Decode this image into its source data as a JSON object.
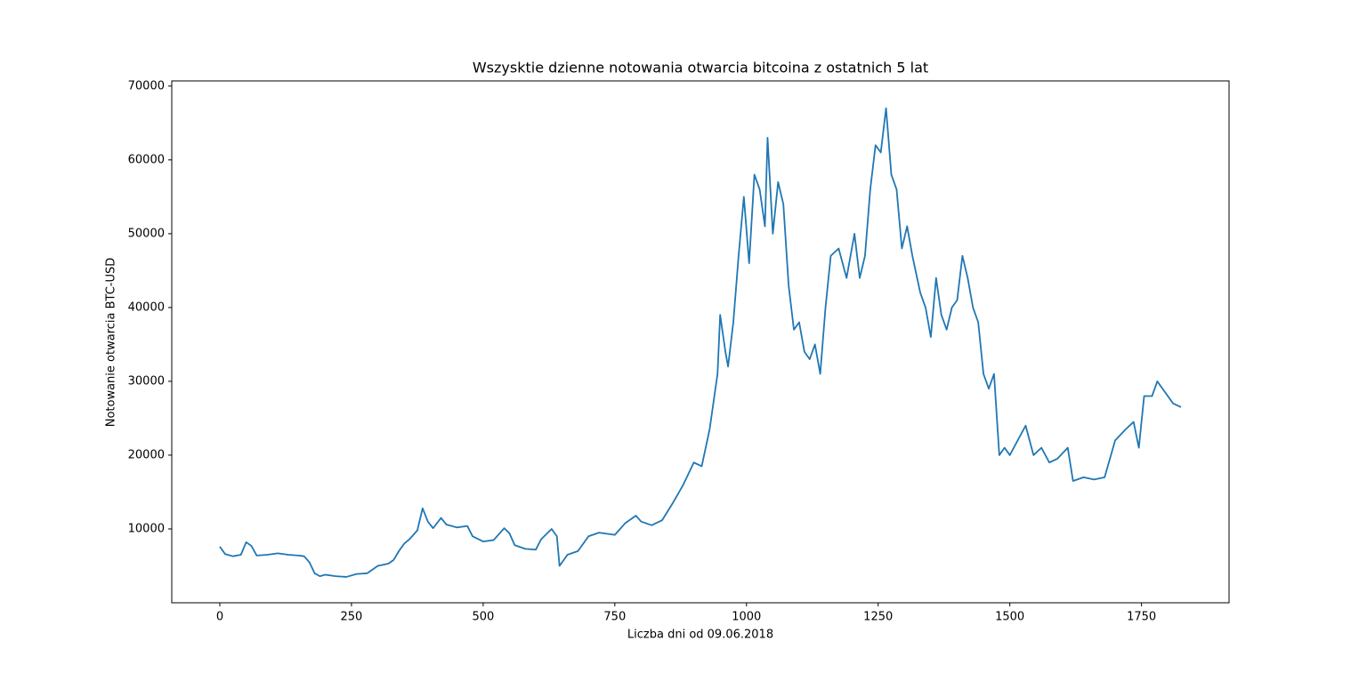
{
  "chart_data": {
    "type": "line",
    "title": "Wszysktie dzienne notowania otwarcia bitcoina z ostatnich 5 lat",
    "x_label": "Liczba dni od 09.06.2018",
    "y_label": "Notowanie otwarcia BTC-USD",
    "color": "#1f77b4",
    "x": [
      0,
      10,
      25,
      40,
      50,
      60,
      70,
      90,
      110,
      130,
      150,
      160,
      170,
      180,
      190,
      200,
      220,
      240,
      260,
      280,
      300,
      320,
      330,
      340,
      350,
      360,
      375,
      385,
      395,
      405,
      420,
      430,
      450,
      470,
      480,
      500,
      520,
      540,
      550,
      560,
      580,
      600,
      610,
      630,
      640,
      645,
      660,
      680,
      700,
      720,
      750,
      770,
      790,
      800,
      820,
      840,
      860,
      880,
      900,
      915,
      930,
      945,
      950,
      960,
      965,
      975,
      985,
      995,
      1005,
      1015,
      1025,
      1035,
      1040,
      1050,
      1060,
      1070,
      1080,
      1090,
      1100,
      1110,
      1120,
      1130,
      1140,
      1150,
      1160,
      1175,
      1190,
      1205,
      1215,
      1225,
      1235,
      1245,
      1255,
      1265,
      1275,
      1285,
      1295,
      1305,
      1315,
      1330,
      1340,
      1350,
      1360,
      1370,
      1380,
      1390,
      1400,
      1410,
      1420,
      1430,
      1440,
      1450,
      1460,
      1470,
      1480,
      1490,
      1500,
      1515,
      1530,
      1545,
      1560,
      1575,
      1590,
      1610,
      1620,
      1640,
      1660,
      1680,
      1700,
      1720,
      1735,
      1745,
      1755,
      1770,
      1780,
      1795,
      1810,
      1825
    ],
    "values": [
      7600,
      6600,
      6300,
      6500,
      8200,
      7700,
      6400,
      6500,
      6700,
      6500,
      6400,
      6300,
      5500,
      4000,
      3600,
      3800,
      3600,
      3500,
      3900,
      4000,
      5000,
      5300,
      5800,
      7000,
      8000,
      8600,
      9800,
      12800,
      11000,
      10100,
      11500,
      10600,
      10200,
      10400,
      9000,
      8300,
      8500,
      10100,
      9400,
      7800,
      7300,
      7200,
      8600,
      10000,
      9000,
      5000,
      6500,
      7000,
      9000,
      9500,
      9200,
      10800,
      11800,
      11000,
      10500,
      11200,
      13500,
      16000,
      19000,
      18500,
      23500,
      31000,
      39000,
      34000,
      32000,
      38000,
      47000,
      55000,
      46000,
      58000,
      56000,
      51000,
      63000,
      50000,
      57000,
      54000,
      43000,
      37000,
      38000,
      34000,
      33000,
      35000,
      31000,
      40000,
      47000,
      48000,
      44000,
      50000,
      44000,
      47000,
      56000,
      62000,
      61000,
      67000,
      58000,
      56000,
      48000,
      51000,
      47000,
      42000,
      40000,
      36000,
      44000,
      39000,
      37000,
      40000,
      41000,
      47000,
      44000,
      40000,
      38000,
      31000,
      29000,
      31000,
      20000,
      21000,
      20000,
      22000,
      24000,
      20000,
      21000,
      19000,
      19500,
      21000,
      16500,
      17000,
      16700,
      17000,
      22000,
      23500,
      24500,
      21000,
      28000,
      28000,
      30000,
      28500,
      27000,
      26500
    ],
    "xlim": [
      -91.25,
      1916.25
    ],
    "ylim": [
      0,
      70700
    ],
    "xticks": [
      0,
      250,
      500,
      750,
      1000,
      1250,
      1500,
      1750
    ],
    "yticks": [
      10000,
      20000,
      30000,
      40000,
      50000,
      60000,
      70000
    ]
  }
}
